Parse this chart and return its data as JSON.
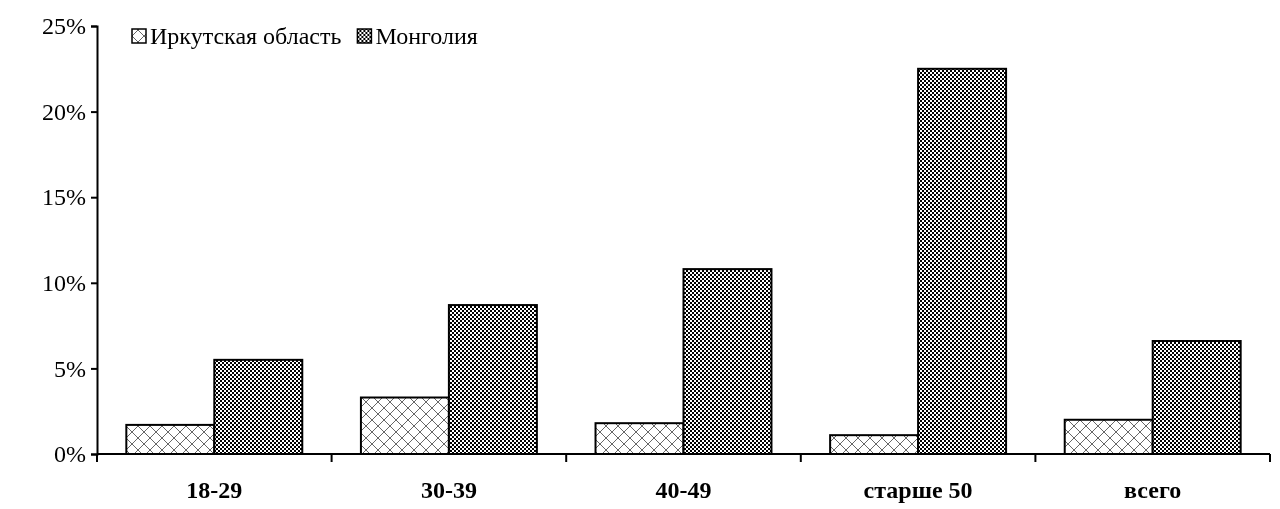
{
  "chart_data": {
    "type": "bar",
    "categories": [
      "18-29",
      "30-39",
      "40-49",
      "старше 50",
      "всего"
    ],
    "series": [
      {
        "name": "Иркутская область",
        "color": "#000000",
        "values": [
          1.7,
          3.3,
          1.8,
          1.1,
          2.0
        ]
      },
      {
        "name": "Монголия",
        "color": "#000000",
        "values": [
          5.5,
          8.7,
          10.8,
          22.5,
          6.6
        ]
      }
    ],
    "ylim": [
      0,
      25
    ],
    "yticks": [
      {
        "value": 0,
        "label": "0%"
      },
      {
        "value": 5,
        "label": "5%"
      },
      {
        "value": 10,
        "label": "10%"
      },
      {
        "value": 15,
        "label": "15%"
      },
      {
        "value": 20,
        "label": "20%"
      },
      {
        "value": 25,
        "label": "25%"
      }
    ],
    "grid": false,
    "legend": "top left"
  }
}
